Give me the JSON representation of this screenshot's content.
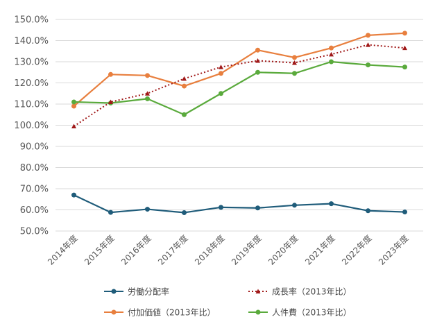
{
  "chart_data": {
    "type": "line",
    "categories": [
      "2014年度",
      "2015年度",
      "2016年度",
      "2017年度",
      "2018年度",
      "2019年度",
      "2020年度",
      "2021年度",
      "2022年度",
      "2023年度"
    ],
    "ylim": [
      50,
      150
    ],
    "yticks": [
      50,
      60,
      70,
      80,
      90,
      100,
      110,
      120,
      130,
      140,
      150
    ],
    "ytick_format": "percent_1dp",
    "grid": true,
    "legend_position": "bottom",
    "series": [
      {
        "name": "労働分配率",
        "color": "#1f5c7a",
        "style": "solid-circle",
        "values": [
          67.0,
          58.8,
          60.3,
          58.7,
          61.2,
          60.9,
          62.2,
          62.9,
          59.6,
          59.0
        ]
      },
      {
        "name": "成長率（2013年比）",
        "color": "#a01818",
        "style": "dotted-triangle",
        "values": [
          99.5,
          111.0,
          115.0,
          122.0,
          127.5,
          130.5,
          129.5,
          133.5,
          138.0,
          136.5
        ]
      },
      {
        "name": "付加価値（2013年比）",
        "color": "#e87f3e",
        "style": "solid-circle",
        "values": [
          109.0,
          124.0,
          123.5,
          118.5,
          124.5,
          135.5,
          132.0,
          136.5,
          142.5,
          143.5
        ]
      },
      {
        "name": "人件費（2013年比）",
        "color": "#5aaa3c",
        "style": "solid-circle",
        "values": [
          111.0,
          110.5,
          112.5,
          105.0,
          115.0,
          125.0,
          124.5,
          130.0,
          128.5,
          127.5
        ]
      }
    ]
  }
}
